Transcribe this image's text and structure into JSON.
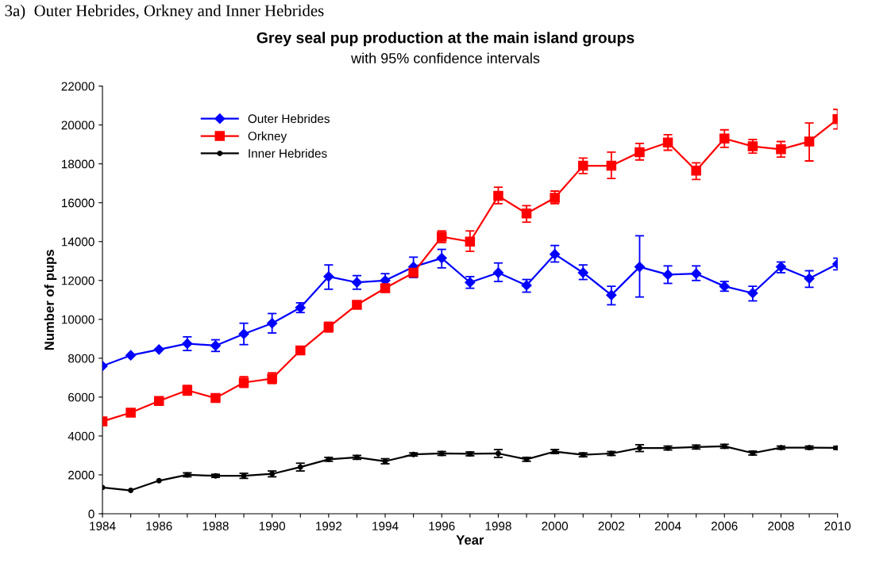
{
  "chart_data": {
    "type": "line",
    "title": "Grey seal pup production at the main island groups",
    "subtitle": "with 95% confidence intervals",
    "xlabel": "Year",
    "ylabel": "Number of pups",
    "annotations": [
      "3a)  Outer Hebrides, Orkney and Inner Hebrides"
    ],
    "x": [
      1984,
      1985,
      1986,
      1987,
      1988,
      1989,
      1990,
      1991,
      1992,
      1993,
      1994,
      1995,
      1996,
      1997,
      1998,
      1999,
      2000,
      2001,
      2002,
      2003,
      2004,
      2005,
      2006,
      2007,
      2008,
      2009,
      2010
    ],
    "xlim": [
      1984,
      2010
    ],
    "xticks": [
      1984,
      {
        "value": 1985,
        "label": null
      },
      1986,
      {
        "value": 1987,
        "label": null
      },
      1988,
      {
        "value": 1989,
        "label": null
      },
      1990,
      {
        "value": 1991,
        "label": null
      },
      1992,
      {
        "value": 1993,
        "label": null
      },
      1994,
      {
        "value": 1995,
        "label": null
      },
      1996,
      {
        "value": 1997,
        "label": null
      },
      1998,
      {
        "value": 1999,
        "label": null
      },
      2000,
      {
        "value": 2001,
        "label": null
      },
      2002,
      {
        "value": 2003,
        "label": null
      },
      2004,
      {
        "value": 2005,
        "label": null
      },
      2006,
      {
        "value": 2007,
        "label": null
      },
      2008,
      {
        "value": 2009,
        "label": null
      },
      2010
    ],
    "ylim": [
      0,
      22000
    ],
    "yticks": [
      0,
      2000,
      4000,
      6000,
      8000,
      10000,
      12000,
      14000,
      16000,
      18000,
      20000,
      22000
    ],
    "grid": false,
    "legend": "top left",
    "line_style": "solid",
    "series": [
      {
        "name": "Outer Hebrides",
        "color": "#0000ff",
        "marker": "diamond",
        "values": [
          7600,
          8150,
          8450,
          8750,
          8650,
          9250,
          9800,
          10600,
          12200,
          11900,
          12000,
          12700,
          13150,
          11900,
          12400,
          11750,
          13350,
          12400,
          11250,
          12700,
          12300,
          12350,
          11700,
          11350,
          12700,
          12100,
          12850
        ],
        "errors": [
          null,
          null,
          null,
          [
            8400,
            9100
          ],
          [
            8350,
            8950
          ],
          [
            8700,
            9800
          ],
          [
            9300,
            10300
          ],
          [
            10350,
            10850
          ],
          [
            11550,
            12800
          ],
          [
            11550,
            12250
          ],
          [
            12000,
            12350
          ],
          [
            12150,
            13200
          ],
          [
            12650,
            13600
          ],
          [
            11600,
            12200
          ],
          [
            11950,
            12900
          ],
          [
            11400,
            12050
          ],
          [
            12950,
            13800
          ],
          [
            12050,
            12800
          ],
          [
            10750,
            11700
          ],
          [
            11150,
            14300
          ],
          [
            11850,
            12750
          ],
          [
            12000,
            12750
          ],
          [
            11450,
            11950
          ],
          [
            10950,
            11700
          ],
          [
            12400,
            12950
          ],
          [
            11650,
            12500
          ],
          [
            12550,
            13150
          ]
        ]
      },
      {
        "name": "Orkney",
        "color": "#ff0000",
        "marker": "square",
        "values": [
          4750,
          5200,
          5800,
          6350,
          5950,
          6750,
          6950,
          8400,
          9600,
          10750,
          11600,
          12400,
          14250,
          14000,
          16350,
          15450,
          16250,
          17900,
          17900,
          18600,
          19100,
          17650,
          19300,
          18900,
          18750,
          19150,
          20300
        ],
        "errors": [
          null,
          null,
          null,
          [
            6100,
            6600
          ],
          null,
          [
            6500,
            7050
          ],
          [
            6700,
            7250
          ],
          [
            8200,
            8600
          ],
          [
            9350,
            9850
          ],
          null,
          null,
          null,
          [
            13950,
            14550
          ],
          [
            13500,
            14550
          ],
          [
            15950,
            16800
          ],
          [
            15000,
            15850
          ],
          [
            15950,
            16600
          ],
          [
            17500,
            18300
          ],
          [
            17250,
            18600
          ],
          [
            18200,
            19050
          ],
          [
            18700,
            19500
          ],
          [
            17200,
            18050
          ],
          [
            18850,
            19750
          ],
          [
            18550,
            19250
          ],
          [
            18350,
            19150
          ],
          [
            18150,
            20100
          ],
          [
            19800,
            20800
          ]
        ]
      },
      {
        "name": "Inner Hebrides",
        "color": "#000000",
        "marker": "circle",
        "values": [
          1350,
          1200,
          1700,
          2000,
          1950,
          1950,
          2050,
          2400,
          2800,
          2900,
          2700,
          3050,
          3100,
          3080,
          3100,
          2800,
          3200,
          3030,
          3100,
          3380,
          3380,
          3430,
          3470,
          3120,
          3400,
          3400,
          3390
        ],
        "errors": [
          null,
          null,
          null,
          100,
          80,
          130,
          150,
          [
            2200,
            2600
          ],
          100,
          100,
          130,
          80,
          100,
          100,
          [
            2900,
            3300
          ],
          100,
          100,
          100,
          100,
          [
            3200,
            3550
          ],
          100,
          100,
          100,
          100,
          80,
          80,
          80
        ]
      }
    ]
  }
}
